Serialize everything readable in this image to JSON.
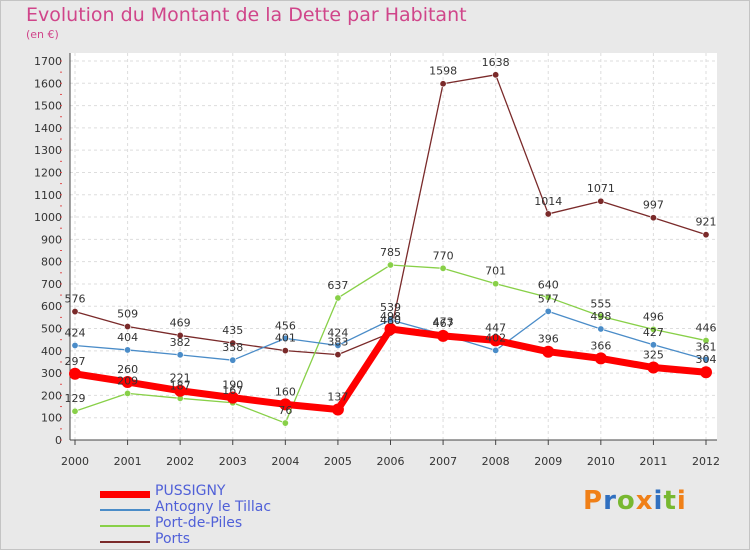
{
  "chart_data": {
    "type": "line",
    "title": "Evolution du Montant de la Dette par Habitant",
    "subtitle": "(en €)",
    "x": [
      "2000",
      "2001",
      "2002",
      "2003",
      "2004",
      "2005",
      "2006",
      "2007",
      "2008",
      "2009",
      "2010",
      "2011",
      "2012"
    ],
    "ylim": [
      0,
      1700
    ],
    "yticks": [
      0,
      100,
      200,
      300,
      400,
      500,
      600,
      700,
      800,
      900,
      1000,
      1100,
      1200,
      1300,
      1400,
      1500,
      1600,
      1700
    ],
    "series": [
      {
        "name": "Ports",
        "color": "#7a2a2a",
        "values": [
          576,
          509,
          469,
          435,
          401,
          383,
          480,
          1598,
          1638,
          1014,
          1071,
          997,
          921
        ],
        "labels": [
          "576",
          "509",
          "469",
          "435",
          "",
          "",
          "",
          "1598",
          "1638",
          "1014",
          "1071",
          "997",
          "921"
        ]
      },
      {
        "name": "Port-de-Piles",
        "color": "#88d048",
        "values": [
          129,
          209,
          187,
          167,
          76,
          637,
          785,
          770,
          701,
          640,
          555,
          496,
          446
        ],
        "labels": [
          "129",
          "209",
          "187",
          "167",
          "76",
          "637",
          "785",
          "770",
          "701",
          "640",
          "555",
          "496",
          "446"
        ]
      },
      {
        "name": "Antogny le Tillac",
        "color": "#4a8cc8",
        "values": [
          424,
          404,
          382,
          358,
          456,
          424,
          539,
          473,
          402,
          577,
          498,
          427,
          361
        ],
        "labels": [
          "424",
          "404",
          "382",
          "358",
          "456",
          "424",
          "539",
          "473",
          "402",
          "577",
          "498",
          "427",
          "361"
        ]
      },
      {
        "name": "PUSSIGNY",
        "color": "#ff0000",
        "values": [
          297,
          260,
          221,
          190,
          160,
          137,
          498,
          467,
          447,
          396,
          366,
          325,
          304
        ],
        "labels": [
          "297",
          "260",
          "221",
          "190",
          "160",
          "137",
          "498",
          "467",
          "447",
          "396",
          "366",
          "325",
          "304"
        ]
      }
    ],
    "extra_labels": [
      "401",
      "383",
      "480"
    ],
    "legend": [
      "PUSSIGNY",
      "Antogny le Tillac",
      "Port-de-Piles",
      "Ports"
    ],
    "legend_position": "bottom-left"
  },
  "logo_text": [
    "P",
    "r",
    "o",
    "x",
    "i",
    "t",
    "i"
  ],
  "logo_colors": [
    "#f08018",
    "#3070c0",
    "#78b830",
    "#f08018",
    "#3070c0",
    "#78b830",
    "#f08018"
  ]
}
